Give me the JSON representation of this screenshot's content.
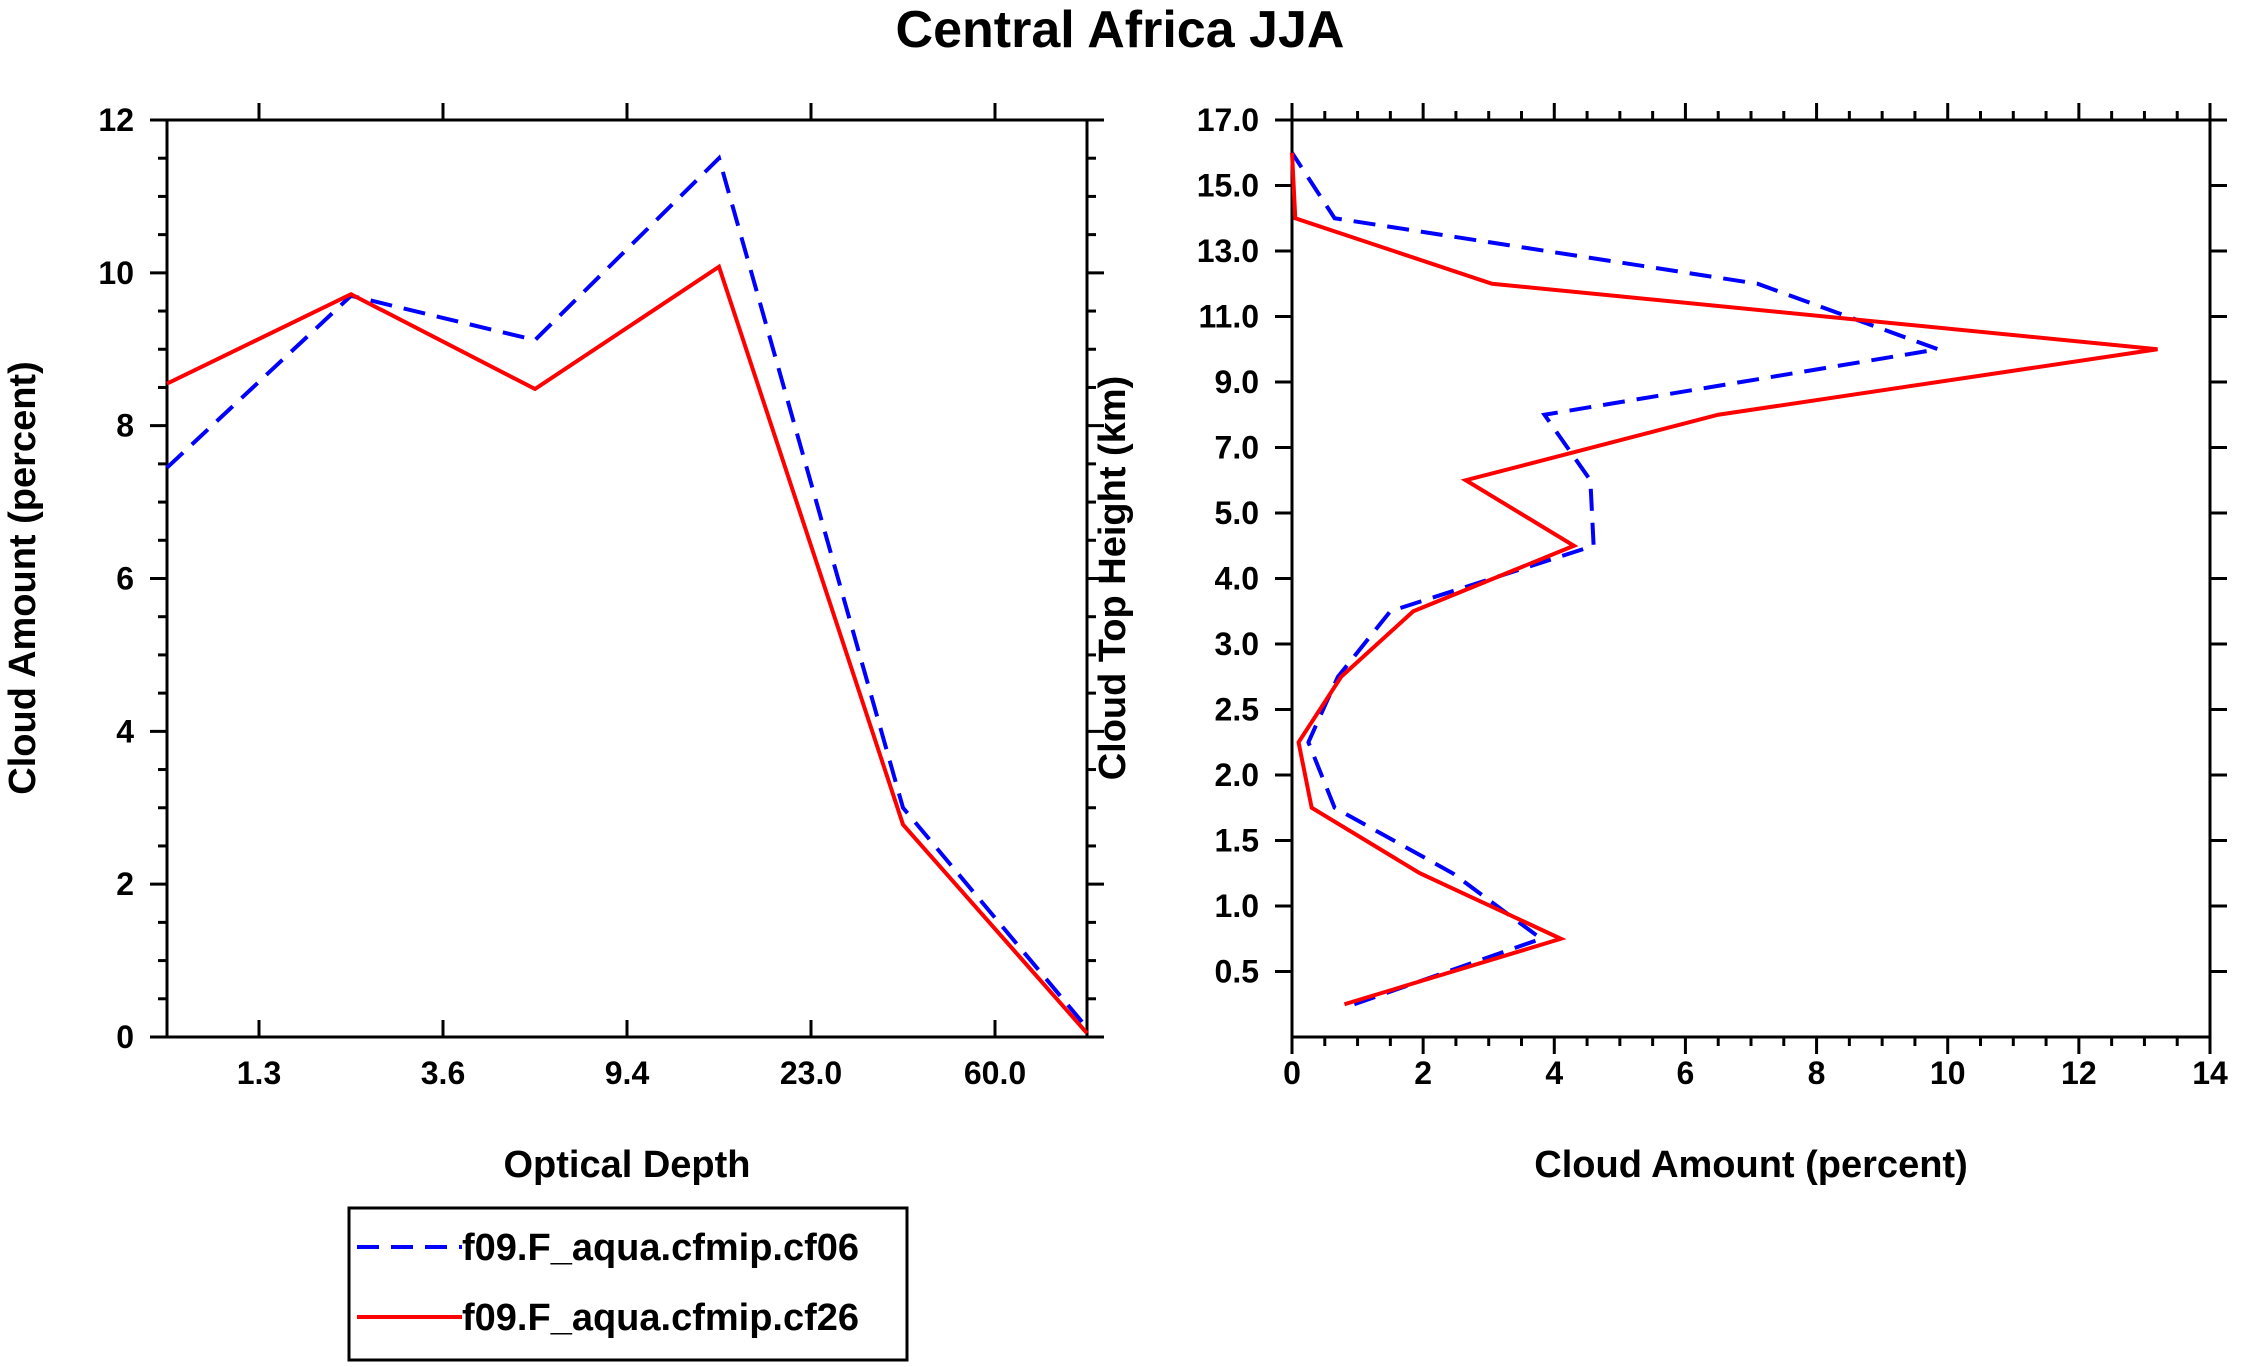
{
  "figure": {
    "title": "Central Africa JJA",
    "legend": [
      {
        "label": "f09.F_aqua.cfmip.cf06",
        "color": "#0000ff",
        "dash": "dashed"
      },
      {
        "label": "f09.F_aqua.cfmip.cf26",
        "color": "#ff0000",
        "dash": "solid"
      }
    ]
  },
  "chart_data": [
    {
      "type": "line",
      "xlabel": "Optical Depth",
      "ylabel": "Cloud Amount (percent)",
      "xlim": [
        0.5,
        5.5
      ],
      "ylim": [
        0,
        12
      ],
      "x_tick_positions": [
        1,
        2,
        3,
        4,
        5
      ],
      "x_tick_labels": [
        "1.3",
        "3.6",
        "9.4",
        "23.0",
        "60.0"
      ],
      "y_ticks": [
        0,
        2,
        4,
        6,
        8,
        10,
        12
      ],
      "x": [
        0.5,
        1.5,
        2.5,
        3.5,
        4.5,
        5.5
      ],
      "series": [
        {
          "name": "f09.F_aqua.cfmip.cf06",
          "color": "#0000ff",
          "dash": "dashed",
          "values": [
            7.45,
            9.7,
            9.12,
            11.5,
            3.0,
            0.12
          ]
        },
        {
          "name": "f09.F_aqua.cfmip.cf26",
          "color": "#ff0000",
          "dash": "solid",
          "values": [
            8.55,
            9.72,
            8.48,
            10.08,
            2.78,
            0.05
          ]
        }
      ]
    },
    {
      "type": "line",
      "orientation": "vertical-profile",
      "xlabel": "Cloud Amount (percent)",
      "ylabel": "Cloud Top Height (km)",
      "xlim": [
        0,
        14
      ],
      "x_ticks": [
        0,
        2,
        4,
        6,
        8,
        10,
        12,
        14
      ],
      "y_tick_labels": [
        "0.5",
        "1.0",
        "1.5",
        "2.0",
        "2.5",
        "3.0",
        "4.0",
        "5.0",
        "7.0",
        "9.0",
        "11.0",
        "13.0",
        "15.0",
        "17.0"
      ],
      "levels": [
        "0.25",
        "0.75",
        "1.25",
        "1.75",
        "2.25",
        "2.75",
        "3.5",
        "4.5",
        "6.0",
        "8.0",
        "10.0",
        "12.0",
        "14.0",
        "16.0"
      ],
      "series": [
        {
          "name": "f09.F_aqua.cfmip.cf06",
          "color": "#0000ff",
          "dash": "dashed",
          "values": [
            0.95,
            3.8,
            2.45,
            0.65,
            0.25,
            0.7,
            1.5,
            4.6,
            4.55,
            3.85,
            9.85,
            7.1,
            0.65,
            0.0
          ]
        },
        {
          "name": "f09.F_aqua.cfmip.cf26",
          "color": "#ff0000",
          "dash": "solid",
          "values": [
            0.8,
            4.1,
            1.95,
            0.3,
            0.1,
            0.75,
            1.85,
            4.3,
            2.65,
            6.5,
            13.2,
            3.05,
            0.05,
            0.0
          ]
        }
      ]
    }
  ]
}
